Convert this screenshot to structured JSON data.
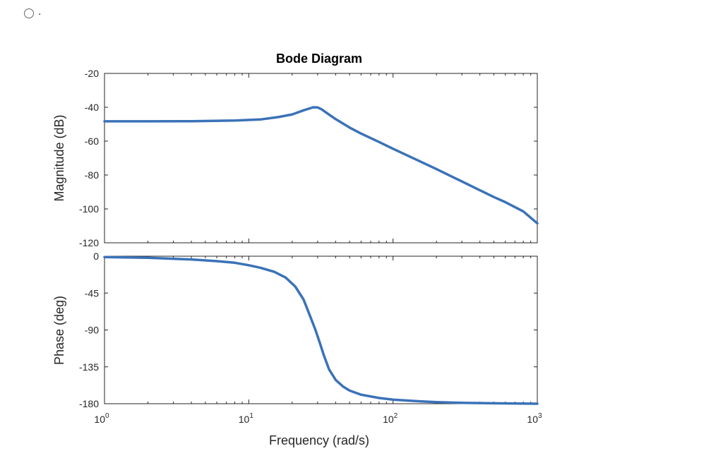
{
  "option": {
    "label": "."
  },
  "chart_data": {
    "type": "line",
    "title": "Bode Diagram",
    "xlabel": "Frequency  (rad/s)",
    "x_scale": "log",
    "xlim": [
      1,
      1000
    ],
    "x_ticks": [
      {
        "base": "10",
        "exp": "0"
      },
      {
        "base": "10",
        "exp": "1"
      },
      {
        "base": "10",
        "exp": "2"
      },
      {
        "base": "10",
        "exp": "3"
      }
    ],
    "grid": false,
    "line_color": "#3a72b8",
    "panels": [
      {
        "name": "magnitude",
        "ylabel": "Magnitude (dB)",
        "ylim": [
          -120,
          -20
        ],
        "yticks": [
          "-20",
          "-40",
          "-60",
          "-80",
          "-100",
          "-120"
        ],
        "series": [
          {
            "x": [
              1,
              2,
              4,
              8,
              12,
              16,
              20,
              24,
              28,
              30,
              32,
              36,
              40,
              50,
              60,
              80,
              100,
              150,
              200,
              300,
              400,
              500,
              600,
              800,
              1000
            ],
            "y": [
              -48.3,
              -48.3,
              -48.2,
              -47.8,
              -47.2,
              -45.8,
              -44.2,
              -41.8,
              -40.0,
              -40.1,
              -41.2,
              -44.3,
              -47.0,
              -52.0,
              -55.5,
              -60.5,
              -64.5,
              -71.5,
              -76.5,
              -83.8,
              -89.0,
              -93.0,
              -96.0,
              -101.5,
              -108.5
            ]
          }
        ]
      },
      {
        "name": "phase",
        "ylabel": "Phase (deg)",
        "ylim": [
          -180,
          0
        ],
        "yticks": [
          "0",
          "-45",
          "-90",
          "-135",
          "-180"
        ],
        "series": [
          {
            "x": [
              1,
              2,
              4,
              6,
              8,
              10,
              12,
              15,
              18,
              21,
              24,
              27,
              29,
              31,
              33,
              36,
              40,
              45,
              50,
              60,
              80,
              100,
              150,
              200,
              300,
              500,
              1000
            ],
            "y": [
              -1,
              -2,
              -4,
              -6,
              -8,
              -11,
              -14,
              -19,
              -26,
              -37,
              -53,
              -76,
              -90,
              -105,
              -120,
              -138,
              -151,
              -159,
              -164,
              -169,
              -173,
              -175,
              -177,
              -178,
              -179,
              -179.5,
              -180
            ]
          }
        ]
      }
    ]
  }
}
